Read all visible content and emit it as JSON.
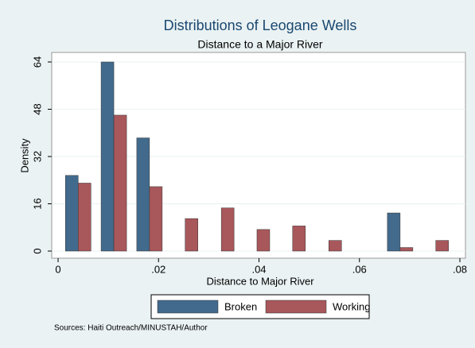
{
  "chart_data": {
    "type": "bar",
    "title": "Distributions of Leogane Wells",
    "subtitle": "Distance to a Major River",
    "x_label": "Distance to Major River",
    "y_label": "Density",
    "source": "Sources: Haiti Outreach/MINUSTAH/Author",
    "x": [
      0.004,
      0.0111,
      0.0182,
      0.0253,
      0.0325,
      0.0396,
      0.0467,
      0.0539,
      0.061,
      0.0681,
      0.0752
    ],
    "series": [
      {
        "name": "Broken",
        "color": "#426a8c",
        "values": [
          25.6,
          64,
          38.3,
          0,
          0,
          0,
          0,
          0,
          0,
          12.9,
          0
        ]
      },
      {
        "name": "Working",
        "color": "#a8575b",
        "values": [
          23,
          46,
          21.8,
          11,
          14.6,
          7.3,
          8.5,
          3.6,
          0,
          1.2,
          3.6
        ]
      }
    ],
    "xlim": [
      0,
      0.08
    ],
    "xticks": [
      0,
      {
        "value": 0.02,
        "label": ".02"
      },
      {
        "value": 0.04,
        "label": ".04"
      },
      {
        "value": 0.06,
        "label": ".06"
      },
      {
        "value": 0.08,
        "label": ".08"
      }
    ],
    "ylim": [
      0,
      64
    ],
    "yticks": [
      0,
      16,
      32,
      48,
      64
    ],
    "grid": true,
    "legend": "bottom"
  }
}
